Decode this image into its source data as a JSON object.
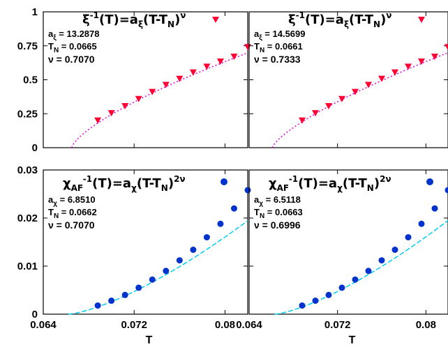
{
  "chart_data": [
    {
      "type": "scatter",
      "panel": "top-left",
      "legend_label": "ξ⁻¹(T)=a_ξ(T-T_N)^ν",
      "params": {
        "a_label": "a",
        "a_sub": "ξ",
        "a_value": "= 13.2878",
        "T_label": "T",
        "T_sub": "N",
        "T_value": "= 0.0665",
        "nu_label": "ν = 0.7070"
      },
      "fit": {
        "a": 13.2878,
        "TN": 0.0665,
        "nu": 0.707,
        "power": 1
      },
      "x": [
        0.0688,
        0.07,
        0.0712,
        0.0724,
        0.0736,
        0.0748,
        0.076,
        0.0772,
        0.0784,
        0.0796,
        0.0808,
        0.082
      ],
      "y": [
        0.202,
        0.256,
        0.308,
        0.36,
        0.412,
        0.464,
        0.509,
        0.556,
        0.598,
        0.636,
        0.672,
        0.742
      ],
      "xlim": [
        0.064,
        0.082
      ],
      "ylim": [
        0,
        1
      ],
      "yticks": [
        "0",
        "0.25",
        "0.5",
        "0.75",
        "1"
      ],
      "colors": {
        "marker": "#ff0033",
        "fit": "#dd00dd"
      }
    },
    {
      "type": "scatter",
      "panel": "top-right",
      "legend_label": "ξ⁻¹(T)=a_ξ(T-T_N)^ν",
      "params": {
        "a_label": "a",
        "a_sub": "ξ",
        "a_value": "= 14.5699",
        "T_label": "T",
        "T_sub": "N",
        "T_value": "= 0.0661",
        "nu_label": "ν = 0.7333"
      },
      "fit": {
        "a": 14.5699,
        "TN": 0.0661,
        "nu": 0.7333,
        "power": 1
      },
      "x": [
        0.0688,
        0.07,
        0.0712,
        0.0724,
        0.0736,
        0.0748,
        0.076,
        0.0772,
        0.0784,
        0.0796,
        0.0808,
        0.082
      ],
      "y": [
        0.202,
        0.256,
        0.308,
        0.36,
        0.412,
        0.464,
        0.509,
        0.556,
        0.598,
        0.636,
        0.672,
        0.742
      ],
      "xlim": [
        0.064,
        0.082
      ],
      "ylim": [
        0,
        1
      ],
      "colors": {
        "marker": "#ff0033",
        "fit": "#dd00dd"
      }
    },
    {
      "type": "scatter",
      "panel": "bottom-left",
      "legend_label": "χ_AF⁻¹(T)=a_χ(T-T_N)^2ν",
      "params": {
        "a_label": "a",
        "a_sub": "χ",
        "a_value": "= 6.8510",
        "T_label": "T",
        "T_sub": "N",
        "T_value": "= 0.0662",
        "nu_label": "ν = 0.7070"
      },
      "fit": {
        "a": 6.851,
        "TN": 0.0662,
        "nu": 0.707,
        "power": 2
      },
      "x": [
        0.0688,
        0.07,
        0.0712,
        0.0724,
        0.0736,
        0.0748,
        0.076,
        0.0772,
        0.0784,
        0.0796,
        0.0808,
        0.082
      ],
      "y": [
        0.0018,
        0.0028,
        0.004,
        0.0055,
        0.0072,
        0.009,
        0.0112,
        0.0134,
        0.016,
        0.0188,
        0.022,
        0.0258
      ],
      "xlim": [
        0.064,
        0.082
      ],
      "ylim": [
        0,
        0.03
      ],
      "xticks": [
        "0.064",
        "0.072",
        "0.08"
      ],
      "yticks": [
        "0",
        "0.01",
        "0.02",
        "0.03"
      ],
      "xlabel": "T",
      "colors": {
        "marker": "#0033cc",
        "fit": "#00ccee"
      }
    },
    {
      "type": "scatter",
      "panel": "bottom-right",
      "legend_label": "χ_AF⁻¹(T)=a_χ(T-T_N)^2ν",
      "params": {
        "a_label": "a",
        "a_sub": "χ",
        "a_value": "= 6.5118",
        "T_label": "T",
        "T_sub": "N",
        "T_value": "= 0.0663",
        "nu_label": "ν = 0.6996"
      },
      "fit": {
        "a": 6.5118,
        "TN": 0.0663,
        "nu": 0.6996,
        "power": 2
      },
      "x": [
        0.0688,
        0.07,
        0.0712,
        0.0724,
        0.0736,
        0.0748,
        0.076,
        0.0772,
        0.0784,
        0.0796,
        0.0808,
        0.082
      ],
      "y": [
        0.0018,
        0.0028,
        0.004,
        0.0055,
        0.0072,
        0.009,
        0.0112,
        0.0134,
        0.016,
        0.0188,
        0.022,
        0.0258
      ],
      "xlim": [
        0.064,
        0.082
      ],
      "ylim": [
        0,
        0.03
      ],
      "xticks": [
        "0.064",
        "0.072",
        "0.08"
      ],
      "xlabel": "T",
      "colors": {
        "marker": "#0033cc",
        "fit": "#00ccee"
      }
    }
  ]
}
